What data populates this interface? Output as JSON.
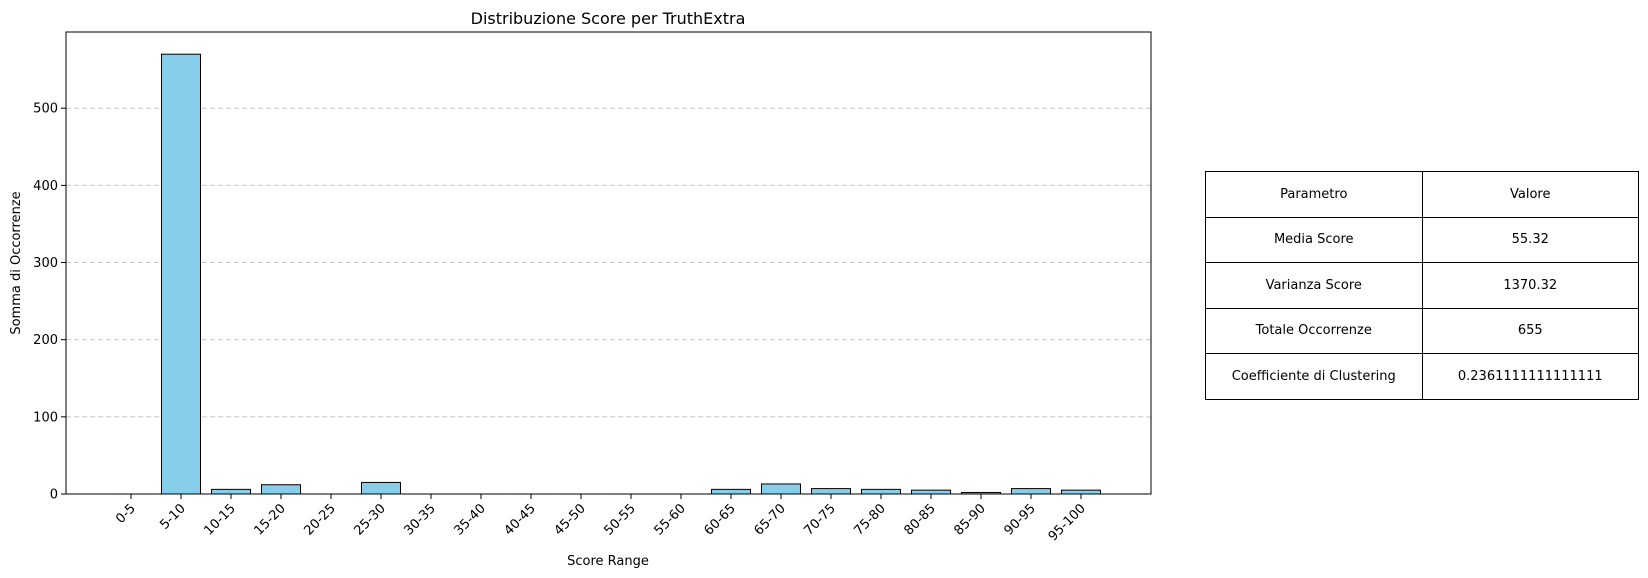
{
  "chart_data": {
    "type": "bar",
    "title": "Distribuzione Score per TruthExtra",
    "xlabel": "Score Range",
    "ylabel": "Somma di Occorrenze",
    "categories": [
      "0-5",
      "5-10",
      "10-15",
      "15-20",
      "20-25",
      "25-30",
      "30-35",
      "35-40",
      "40-45",
      "45-50",
      "50-55",
      "55-60",
      "60-65",
      "65-70",
      "70-75",
      "75-80",
      "80-85",
      "85-90",
      "90-95",
      "95-100"
    ],
    "values": [
      0,
      570,
      6,
      12,
      0,
      15,
      0,
      0,
      0,
      0,
      0,
      0,
      6,
      13,
      7,
      6,
      5,
      2,
      7,
      5
    ],
    "ylim": [
      0,
      600
    ],
    "yticks": [
      0,
      100,
      200,
      300,
      400,
      500
    ],
    "grid": "y-dashed",
    "bar_color": "#87CEEB",
    "edge_color": "#000000"
  },
  "table": {
    "header": [
      "Parametro",
      "Valore"
    ],
    "rows": [
      [
        "Media Score",
        "55.32"
      ],
      [
        "Varianza Score",
        "1370.32"
      ],
      [
        "Totale Occorrenze",
        "655"
      ],
      [
        "Coefficiente di Clustering",
        "0.2361111111111111"
      ]
    ]
  }
}
